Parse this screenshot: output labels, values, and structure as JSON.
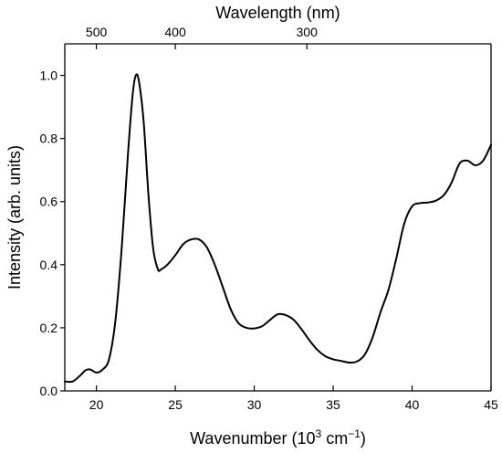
{
  "chart_data": {
    "type": "line",
    "xlabel": "Wavenumber (10",
    "xlabel_sup1": "3",
    "xlabel_mid": " cm",
    "xlabel_sup2": "−1",
    "xlabel_end": ")",
    "ylabel": "Intensity (arb. units)",
    "top_xlabel": "Wavelength (nm)",
    "xlim": [
      18,
      45
    ],
    "ylim": [
      0,
      1.1
    ],
    "grid": false,
    "x_ticks": [
      20,
      25,
      30,
      35,
      40,
      45
    ],
    "x_tick_labels": [
      "20",
      "25",
      "30",
      "35",
      "40",
      "45"
    ],
    "y_ticks": [
      0.0,
      0.2,
      0.4,
      0.6,
      0.8,
      1.0
    ],
    "y_tick_labels": [
      "0.0",
      "0.2",
      "0.4",
      "0.6",
      "0.8",
      "1.0"
    ],
    "top_ticks": [
      {
        "wavelength": 500,
        "label": "500"
      },
      {
        "wavelength": 400,
        "label": "400"
      },
      {
        "wavelength": 300,
        "label": "300"
      }
    ],
    "series": [
      {
        "color": "#000000",
        "x": [
          18.0,
          18.5,
          19.0,
          19.3,
          19.6,
          20.0,
          20.4,
          20.8,
          21.2,
          21.6,
          22.0,
          22.3,
          22.5,
          22.7,
          23.0,
          23.3,
          23.6,
          23.9,
          24.1,
          24.5,
          25.0,
          25.5,
          26.0,
          26.5,
          27.0,
          27.5,
          28.0,
          28.5,
          29.0,
          29.5,
          30.0,
          30.5,
          31.0,
          31.5,
          32.0,
          32.5,
          33.0,
          33.5,
          34.0,
          34.5,
          35.0,
          35.5,
          36.0,
          36.5,
          37.0,
          37.5,
          38.0,
          38.5,
          39.0,
          39.5,
          40.0,
          40.5,
          41.0,
          41.5,
          42.0,
          42.5,
          43.0,
          43.5,
          44.0,
          44.5,
          45.0
        ],
        "y": [
          0.03,
          0.03,
          0.05,
          0.065,
          0.068,
          0.058,
          0.068,
          0.1,
          0.22,
          0.45,
          0.75,
          0.94,
          1.0,
          0.98,
          0.85,
          0.62,
          0.45,
          0.385,
          0.385,
          0.4,
          0.43,
          0.465,
          0.48,
          0.48,
          0.455,
          0.4,
          0.33,
          0.26,
          0.215,
          0.2,
          0.198,
          0.205,
          0.225,
          0.243,
          0.24,
          0.225,
          0.195,
          0.16,
          0.13,
          0.11,
          0.1,
          0.095,
          0.09,
          0.093,
          0.115,
          0.17,
          0.25,
          0.32,
          0.42,
          0.53,
          0.585,
          0.595,
          0.597,
          0.603,
          0.62,
          0.66,
          0.72,
          0.73,
          0.715,
          0.73,
          0.78
        ]
      }
    ]
  }
}
